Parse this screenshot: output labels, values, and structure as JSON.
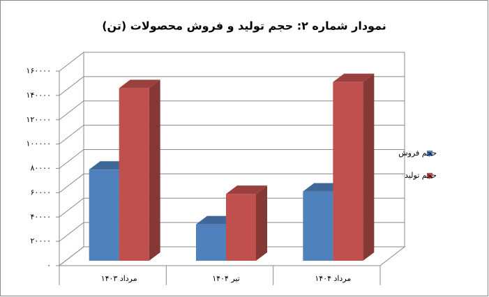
{
  "chart_data": {
    "type": "bar3d",
    "title": "نمودار شماره ۲: حجم تولید و فروش محصولات (تن)",
    "categories": [
      "مرداد ۱۴۰۳",
      "تیر ۱۴۰۴",
      "مرداد ۱۴۰۴"
    ],
    "series": [
      {
        "name": "حجم فروش",
        "color": "#4f81bd",
        "values": [
          75000,
          30000,
          57000
        ]
      },
      {
        "name": "حجم تولید",
        "color": "#c0504d",
        "values": [
          142000,
          55000,
          147000
        ]
      }
    ],
    "ylim": [
      0,
      160000
    ],
    "yticks": [
      {
        "value": 0,
        "label": "۰"
      },
      {
        "value": 20000,
        "label": "۲۰۰۰۰"
      },
      {
        "value": 40000,
        "label": "۴۰۰۰۰"
      },
      {
        "value": 60000,
        "label": "۶۰۰۰۰"
      },
      {
        "value": 80000,
        "label": "۸۰۰۰۰"
      },
      {
        "value": 100000,
        "label": "۱۰۰۰۰۰"
      },
      {
        "value": 120000,
        "label": "۱۲۰۰۰۰"
      },
      {
        "value": 140000,
        "label": "۱۴۰۰۰۰"
      },
      {
        "value": 160000,
        "label": "۱۶۰۰۰۰"
      }
    ],
    "grid": true,
    "legend": "right"
  }
}
